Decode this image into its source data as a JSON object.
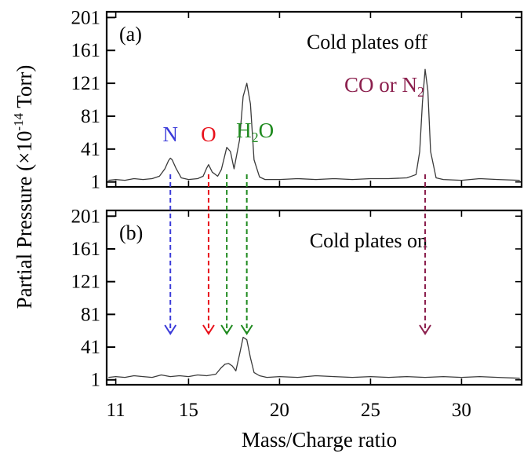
{
  "chart_data": {
    "type": "line",
    "xlabel": "Mass/Charge ratio",
    "ylabel_main": "Partial Pressure (×10",
    "ylabel_exp": "-14",
    "ylabel_unit": " Torr)",
    "x_ticks": [
      11,
      15,
      20,
      25,
      30
    ],
    "y_ticks": [
      1,
      41,
      81,
      121,
      161,
      201
    ],
    "xlim": [
      10.5,
      33.3
    ],
    "ylim": [
      -5,
      208
    ],
    "grid": false,
    "panels": [
      {
        "label": "(a)",
        "condition": "Cold plates off",
        "series": {
          "x": [
            10.6,
            11.0,
            11.5,
            12.0,
            12.5,
            13.0,
            13.4,
            13.7,
            13.9,
            14.0,
            14.1,
            14.3,
            14.6,
            15.0,
            15.5,
            15.8,
            16.0,
            16.1,
            16.3,
            16.6,
            16.8,
            17.0,
            17.1,
            17.3,
            17.5,
            17.8,
            18.0,
            18.2,
            18.4,
            18.6,
            18.9,
            19.2,
            20.0,
            21.0,
            22.0,
            23.0,
            24.0,
            25.0,
            26.0,
            27.0,
            27.5,
            27.7,
            27.85,
            28.0,
            28.15,
            28.3,
            28.6,
            29.0,
            30.0,
            31.0,
            32.0,
            33.2
          ],
          "y": [
            3,
            4,
            3,
            5,
            4,
            5,
            8,
            17,
            27,
            30,
            28,
            18,
            6,
            4,
            5,
            8,
            18,
            22,
            13,
            8,
            16,
            34,
            43,
            38,
            17,
            52,
            105,
            121,
            96,
            28,
            7,
            4,
            4,
            5,
            4,
            5,
            4,
            5,
            5,
            6,
            10,
            38,
            98,
            138,
            112,
            38,
            6,
            4,
            3,
            5,
            4,
            3
          ]
        }
      },
      {
        "label": "(b)",
        "condition": "Cold plates on",
        "series": {
          "x": [
            10.6,
            11.0,
            11.5,
            12.0,
            12.5,
            13.0,
            13.5,
            14.0,
            14.5,
            15.0,
            15.5,
            16.0,
            16.5,
            16.8,
            17.0,
            17.2,
            17.4,
            17.6,
            17.8,
            18.0,
            18.2,
            18.4,
            18.6,
            18.9,
            19.3,
            20.0,
            21.0,
            22.0,
            23.0,
            24.0,
            25.0,
            26.0,
            27.0,
            28.0,
            29.0,
            30.0,
            31.0,
            32.0,
            33.2
          ],
          "y": [
            4,
            5,
            4,
            6,
            5,
            4,
            7,
            5,
            6,
            5,
            7,
            6,
            8,
            16,
            20,
            21,
            18,
            12,
            32,
            53,
            50,
            28,
            10,
            6,
            4,
            5,
            4,
            6,
            5,
            4,
            5,
            4,
            5,
            4,
            5,
            4,
            5,
            4,
            3
          ]
        }
      }
    ],
    "annotations": [
      {
        "text": "N",
        "sub": "",
        "color": "#3b3bd9",
        "x": 14.0
      },
      {
        "text": "O",
        "sub": "",
        "color": "#e8111b",
        "x": 16.1
      },
      {
        "text": "H",
        "sub": "2",
        "tail": "O",
        "color": "#1f8a1f",
        "x": 17.1
      },
      {
        "text": "CO or N",
        "sub": "2",
        "tail": "",
        "color": "#8b1f4d",
        "x": 28.0
      }
    ],
    "arrows": [
      {
        "x": 14.0,
        "color": "#3b3bd9"
      },
      {
        "x": 16.1,
        "color": "#e8111b"
      },
      {
        "x": 17.1,
        "color": "#1f8a1f"
      },
      {
        "x": 18.2,
        "color": "#1f8a1f"
      },
      {
        "x": 28.0,
        "color": "#8b1f4d"
      }
    ]
  }
}
